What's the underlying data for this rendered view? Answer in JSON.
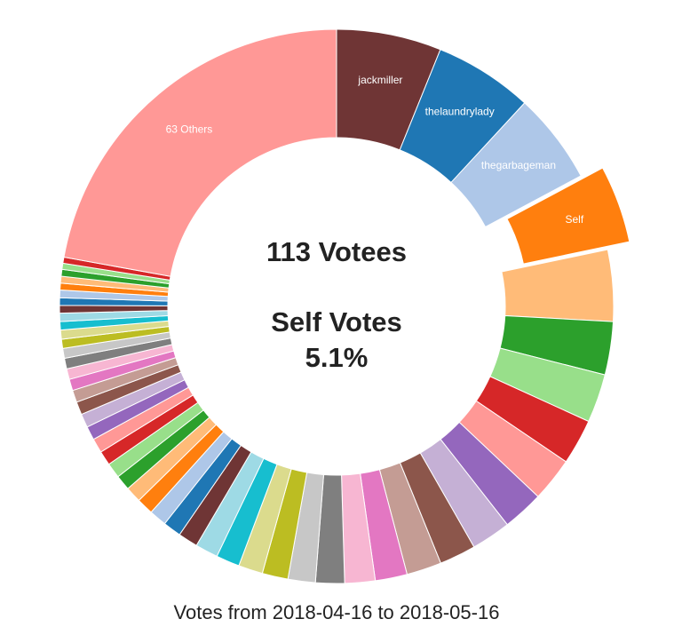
{
  "chart_data": {
    "type": "pie",
    "donut": true,
    "center": {
      "line1": "113 Votees",
      "line2": "Self Votes",
      "line3": "5.1%"
    },
    "caption": "Votes from 2018-04-16 to 2018-05-16",
    "highlighted_slice": "Self",
    "slices": [
      {
        "label": "jackmiller",
        "value": 6.9,
        "color": "#6f3535"
      },
      {
        "label": "thelaundrylady",
        "value": 6.5,
        "color": "#1f77b4"
      },
      {
        "label": "thegarbageman",
        "value": 6.0,
        "color": "#aec7e8"
      },
      {
        "label": "Self",
        "value": 5.1,
        "color": "#ff7f0e"
      },
      {
        "label": "",
        "value": 4.7,
        "color": "#ffbb78"
      },
      {
        "label": "",
        "value": 3.5,
        "color": "#2ca02c"
      },
      {
        "label": "",
        "value": 3.2,
        "color": "#98df8a"
      },
      {
        "label": "",
        "value": 3.0,
        "color": "#d62728"
      },
      {
        "label": "",
        "value": 2.9,
        "color": "#ff9896"
      },
      {
        "label": "",
        "value": 2.7,
        "color": "#9467bd"
      },
      {
        "label": "",
        "value": 2.6,
        "color": "#c5b0d5"
      },
      {
        "label": "",
        "value": 2.4,
        "color": "#8c564b"
      },
      {
        "label": "",
        "value": 2.3,
        "color": "#c49c94"
      },
      {
        "label": "",
        "value": 2.1,
        "color": "#e377c2"
      },
      {
        "label": "",
        "value": 2.0,
        "color": "#f7b6d2"
      },
      {
        "label": "",
        "value": 1.9,
        "color": "#7f7f7f"
      },
      {
        "label": "",
        "value": 1.8,
        "color": "#c7c7c7"
      },
      {
        "label": "",
        "value": 1.7,
        "color": "#bcbd22"
      },
      {
        "label": "",
        "value": 1.6,
        "color": "#dbdb8d"
      },
      {
        "label": "",
        "value": 1.55,
        "color": "#17becf"
      },
      {
        "label": "",
        "value": 1.5,
        "color": "#9edae5"
      },
      {
        "label": "",
        "value": 1.3,
        "color": "#6f3535"
      },
      {
        "label": "",
        "value": 1.2,
        "color": "#1f77b4"
      },
      {
        "label": "",
        "value": 1.15,
        "color": "#aec7e8"
      },
      {
        "label": "",
        "value": 1.1,
        "color": "#ff7f0e"
      },
      {
        "label": "",
        "value": 1.05,
        "color": "#ffbb78"
      },
      {
        "label": "",
        "value": 1.0,
        "color": "#2ca02c"
      },
      {
        "label": "",
        "value": 1.0,
        "color": "#98df8a"
      },
      {
        "label": "",
        "value": 0.95,
        "color": "#d62728"
      },
      {
        "label": "",
        "value": 0.95,
        "color": "#ff9896"
      },
      {
        "label": "",
        "value": 0.9,
        "color": "#9467bd"
      },
      {
        "label": "",
        "value": 0.9,
        "color": "#c5b0d5"
      },
      {
        "label": "",
        "value": 0.85,
        "color": "#8c564b"
      },
      {
        "label": "",
        "value": 0.8,
        "color": "#c49c94"
      },
      {
        "label": "",
        "value": 0.75,
        "color": "#e377c2"
      },
      {
        "label": "",
        "value": 0.7,
        "color": "#f7b6d2"
      },
      {
        "label": "",
        "value": 0.7,
        "color": "#7f7f7f"
      },
      {
        "label": "",
        "value": 0.65,
        "color": "#c7c7c7"
      },
      {
        "label": "",
        "value": 0.6,
        "color": "#bcbd22"
      },
      {
        "label": "",
        "value": 0.6,
        "color": "#dbdb8d"
      },
      {
        "label": "",
        "value": 0.55,
        "color": "#17becf"
      },
      {
        "label": "",
        "value": 0.55,
        "color": "#9edae5"
      },
      {
        "label": "",
        "value": 0.5,
        "color": "#6f3535"
      },
      {
        "label": "",
        "value": 0.5,
        "color": "#1f77b4"
      },
      {
        "label": "",
        "value": 0.5,
        "color": "#aec7e8"
      },
      {
        "label": "",
        "value": 0.45,
        "color": "#ff7f0e"
      },
      {
        "label": "",
        "value": 0.45,
        "color": "#ffbb78"
      },
      {
        "label": "",
        "value": 0.45,
        "color": "#2ca02c"
      },
      {
        "label": "",
        "value": 0.4,
        "color": "#98df8a"
      },
      {
        "label": "",
        "value": 0.4,
        "color": "#d62728"
      },
      {
        "label": "63 Others",
        "value": 25.0,
        "color": "#ff9896"
      }
    ]
  }
}
